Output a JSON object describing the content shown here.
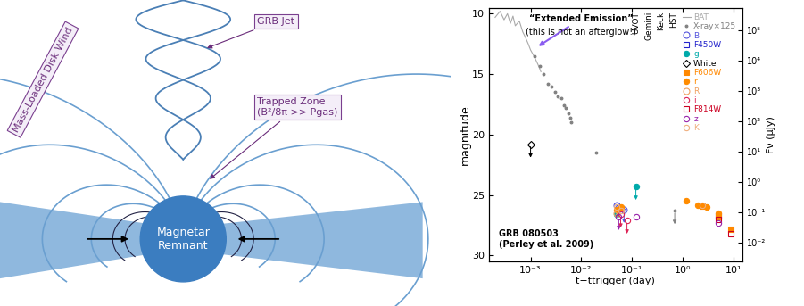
{
  "diagram": {
    "labels": {
      "disk_wind": "Mass-Loaded Disk Wind",
      "jet": "GRB Jet",
      "trapped_zone": "Trapped Zone\n(B²/8π >> Pgas)",
      "remnant": "Magnetar\nRemnant"
    }
  },
  "chart_data": {
    "type": "scatter",
    "log": "x",
    "xlabel": "t−ttrigger (day)",
    "ylabel": "magnitude",
    "y2label": "Fν (μJy)",
    "xlim": [
      0.00015,
      15
    ],
    "ylim": [
      30.5,
      9.5
    ],
    "y2lim": [
      0.00229,
      575440
    ],
    "xticks": [
      {
        "value": 0.001,
        "label": "10⁻³"
      },
      {
        "value": 0.01,
        "label": "10⁻²"
      },
      {
        "value": 0.1,
        "label": "10⁻¹"
      },
      {
        "value": 1,
        "label": "10⁰"
      },
      {
        "value": 10,
        "label": "10¹"
      }
    ],
    "yticks": [
      10,
      15,
      20,
      25,
      30
    ],
    "y2ticks": [
      {
        "value": 100000,
        "label": "10⁵"
      },
      {
        "value": 10000,
        "label": "10⁴"
      },
      {
        "value": 1000,
        "label": "10³"
      },
      {
        "value": 100,
        "label": "10²"
      },
      {
        "value": 10,
        "label": "10¹"
      },
      {
        "value": 1,
        "label": "10⁰"
      },
      {
        "value": 0.1,
        "label": "10⁻¹"
      },
      {
        "value": 0.01,
        "label": "10⁻²"
      }
    ],
    "legend": "upper right",
    "instruments": [
      "UVOT",
      "Gemini",
      "Keck",
      "HST"
    ],
    "annotations": [
      "“Extended Emission”",
      "(this is not an afterglow!)",
      "GRB 080503\n(Perley et al. 2009)"
    ],
    "series": [
      {
        "name": "BAT",
        "type": "line",
        "color": "#aaaaaa",
        "x": [
          0.0002,
          0.00025,
          0.0003,
          0.00035,
          0.0004,
          0.00045,
          0.0005,
          0.0006,
          0.0007,
          0.0008,
          0.0009,
          0.001,
          0.0012,
          0.0014,
          0.0016
        ],
        "values": [
          10.3,
          9.8,
          10.5,
          10.0,
          10.8,
          10.2,
          11.0,
          10.6,
          11.5,
          12.0,
          12.5,
          13.0,
          13.6,
          14.2,
          14.8
        ]
      },
      {
        "name": "X-ray×125",
        "marker": "point",
        "color": "#808080",
        "x": [
          0.0012,
          0.0015,
          0.0018,
          0.0022,
          0.0026,
          0.003,
          0.0035,
          0.004,
          0.0045,
          0.005,
          0.0055,
          0.006,
          0.0062,
          0.02,
          0.7
        ],
        "values": [
          13.5,
          14.3,
          15.0,
          15.8,
          16.0,
          16.5,
          16.8,
          17.0,
          17.6,
          17.8,
          18.2,
          18.6,
          19.0,
          21.5,
          26.3
        ],
        "upper_limit": [
          false,
          false,
          false,
          false,
          false,
          false,
          false,
          false,
          false,
          false,
          false,
          false,
          false,
          false,
          true
        ]
      },
      {
        "name": "B",
        "marker": "x_circle",
        "color": "#5555dd",
        "x": [
          0.05,
          0.07
        ],
        "values": [
          25.8,
          26.2
        ],
        "upper_limit": [
          false,
          true
        ]
      },
      {
        "name": "F450W",
        "marker": "open_square",
        "color": "#2222cc",
        "x": [
          5
        ],
        "values": [
          26.7
        ],
        "upper_limit": [
          false
        ]
      },
      {
        "name": "g",
        "marker": "circle",
        "color": "#00aaaa",
        "x": [
          0.05,
          0.12
        ],
        "values": [
          26.6,
          24.3
        ],
        "upper_limit": [
          false,
          true
        ]
      },
      {
        "name": "White",
        "marker": "open_diamond",
        "color": "#000000",
        "x": [
          0.001
        ],
        "values": [
          20.8
        ],
        "upper_limit": [
          true
        ]
      },
      {
        "name": "F606W",
        "marker": "square",
        "color": "#ff8800",
        "x": [
          2.5,
          5,
          9
        ],
        "values": [
          25.9,
          26.8,
          27.8
        ],
        "upper_limit": [
          false,
          false,
          false
        ]
      },
      {
        "name": "r",
        "marker": "circle",
        "color": "#ff8c00",
        "x": [
          0.05,
          0.06,
          1.2,
          2,
          3,
          5
        ],
        "values": [
          26.2,
          26.0,
          25.5,
          25.8,
          26.0,
          26.5
        ],
        "upper_limit": [
          false,
          false,
          false,
          false,
          false,
          false
        ]
      },
      {
        "name": "R",
        "marker": "x_circle",
        "color": "#f0a060",
        "x": [
          0.05
        ],
        "values": [
          26.5
        ],
        "upper_limit": [
          false
        ]
      },
      {
        "name": "i",
        "marker": "open_circle",
        "color": "#dd2255",
        "x": [
          0.06,
          0.08
        ],
        "values": [
          26.6,
          27.1
        ],
        "upper_limit": [
          true,
          true
        ]
      },
      {
        "name": "F814W",
        "marker": "open_square",
        "color": "#cc0022",
        "x": [
          5,
          9
        ],
        "values": [
          27.0,
          28.2
        ],
        "upper_limit": [
          false,
          false
        ]
      },
      {
        "name": "z",
        "marker": "open_circle",
        "color": "#9922aa",
        "x": [
          0.055,
          0.12,
          5
        ],
        "values": [
          26.8,
          26.8,
          27.3
        ],
        "upper_limit": [
          true,
          false,
          false
        ]
      },
      {
        "name": "K",
        "marker": "open_circle",
        "color": "#f0b080",
        "x": [
          0.05,
          0.06,
          2.5
        ],
        "values": [
          26.0,
          26.3,
          25.8
        ],
        "upper_limit": [
          false,
          false,
          false
        ]
      }
    ]
  }
}
